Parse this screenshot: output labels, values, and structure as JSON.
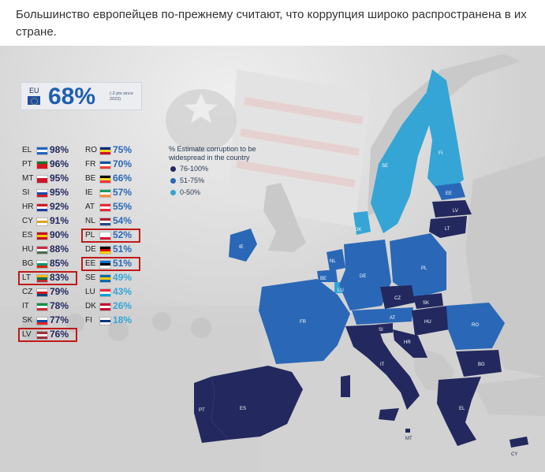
{
  "headline": "Большинство европейцев по-прежнему считают, что коррупция широко распространена в их стране.",
  "eu_summary": {
    "code": "EU",
    "value": "68%",
    "note": "(-2 pts since 2023)"
  },
  "legend": {
    "title": "% Estimate corruption to be widespread in the country",
    "items": [
      {
        "label": "76-100%",
        "color": "#23295e"
      },
      {
        "label": "51-75%",
        "color": "#2a68b7"
      },
      {
        "label": "0-50%",
        "color": "#35a5d6"
      }
    ]
  },
  "colors": {
    "high": "#23295e",
    "medium": "#2a68b7",
    "low": "#35a5d6",
    "non_eu": "#c9c9c9",
    "highlight": "#c01a1a"
  },
  "countries_left": [
    {
      "code": "EL",
      "pct": "98%",
      "flag": [
        "#1c64c4",
        "#ffffff",
        "#1c64c4"
      ],
      "highlight": false
    },
    {
      "code": "PT",
      "pct": "96%",
      "flag": [
        "#0f7a2d",
        "#d8161d",
        "#d8161d"
      ],
      "highlight": false
    },
    {
      "code": "MT",
      "pct": "95%",
      "flag": [
        "#ffffff",
        "#cf142b",
        "#cf142b"
      ],
      "highlight": false
    },
    {
      "code": "SI",
      "pct": "95%",
      "flag": [
        "#ffffff",
        "#1a4bb0",
        "#d8161d"
      ],
      "highlight": false
    },
    {
      "code": "HR",
      "pct": "92%",
      "flag": [
        "#d8161d",
        "#ffffff",
        "#1a3ea0"
      ],
      "highlight": false
    },
    {
      "code": "CY",
      "pct": "91%",
      "flag": [
        "#ffffff",
        "#e3a21a",
        "#ffffff"
      ],
      "highlight": false
    },
    {
      "code": "ES",
      "pct": "90%",
      "flag": [
        "#c60b1e",
        "#ffc400",
        "#c60b1e"
      ],
      "highlight": false
    },
    {
      "code": "HU",
      "pct": "88%",
      "flag": [
        "#cd2a3e",
        "#ffffff",
        "#436f4d"
      ],
      "highlight": false
    },
    {
      "code": "BG",
      "pct": "85%",
      "flag": [
        "#ffffff",
        "#00966e",
        "#d62612"
      ],
      "highlight": false
    },
    {
      "code": "LT",
      "pct": "83%",
      "flag": [
        "#fdb913",
        "#006a44",
        "#c1272d"
      ],
      "highlight": true
    },
    {
      "code": "CZ",
      "pct": "79%",
      "flag": [
        "#ffffff",
        "#d7141a",
        "#11457e"
      ],
      "highlight": false
    },
    {
      "code": "IT",
      "pct": "78%",
      "flag": [
        "#009246",
        "#ffffff",
        "#ce2b37"
      ],
      "highlight": false
    },
    {
      "code": "SK",
      "pct": "77%",
      "flag": [
        "#ffffff",
        "#0b4ea2",
        "#ee1c25"
      ],
      "highlight": false
    },
    {
      "code": "LV",
      "pct": "76%",
      "flag": [
        "#9e3039",
        "#ffffff",
        "#9e3039"
      ],
      "highlight": true
    }
  ],
  "countries_right": [
    {
      "code": "RO",
      "pct": "75%",
      "flag": [
        "#002b7f",
        "#fcd116",
        "#ce1126"
      ],
      "highlight": false
    },
    {
      "code": "FR",
      "pct": "70%",
      "flag": [
        "#0055a4",
        "#ffffff",
        "#ef4135"
      ],
      "highlight": false
    },
    {
      "code": "BE",
      "pct": "66%",
      "flag": [
        "#000000",
        "#fdda24",
        "#ef3340"
      ],
      "highlight": false
    },
    {
      "code": "IE",
      "pct": "57%",
      "flag": [
        "#169b62",
        "#ffffff",
        "#ff883e"
      ],
      "highlight": false
    },
    {
      "code": "AT",
      "pct": "55%",
      "flag": [
        "#ed2939",
        "#ffffff",
        "#ed2939"
      ],
      "highlight": false
    },
    {
      "code": "NL",
      "pct": "54%",
      "flag": [
        "#ae1c28",
        "#ffffff",
        "#21468b"
      ],
      "highlight": false
    },
    {
      "code": "PL",
      "pct": "52%",
      "flag": [
        "#ffffff",
        "#ffffff",
        "#dc143c"
      ],
      "highlight": true
    },
    {
      "code": "DE",
      "pct": "51%",
      "flag": [
        "#000000",
        "#dd0000",
        "#ffce00"
      ],
      "highlight": false
    },
    {
      "code": "EE",
      "pct": "51%",
      "flag": [
        "#0072ce",
        "#000000",
        "#ffffff"
      ],
      "highlight": true
    },
    {
      "code": "SE",
      "pct": "49%",
      "flag": [
        "#006aa7",
        "#fecc00",
        "#006aa7"
      ],
      "highlight": false
    },
    {
      "code": "LU",
      "pct": "43%",
      "flag": [
        "#ed2939",
        "#ffffff",
        "#00a1de"
      ],
      "highlight": false
    },
    {
      "code": "DK",
      "pct": "26%",
      "flag": [
        "#c60c30",
        "#ffffff",
        "#c60c30"
      ],
      "highlight": false
    },
    {
      "code": "FI",
      "pct": "18%",
      "flag": [
        "#ffffff",
        "#003580",
        "#ffffff"
      ],
      "highlight": false
    }
  ],
  "map_labels": {
    "SE": "SE",
    "FI": "FI",
    "EE": "EE",
    "LV": "LV",
    "LT": "LT",
    "IE": "IE",
    "DK": "DK",
    "NL": "NL",
    "BE": "BE",
    "LU": "LU",
    "DE": "DE",
    "PL": "PL",
    "CZ": "CZ",
    "SK": "SK",
    "AT": "AT",
    "SI": "SI",
    "HU": "HU",
    "HR": "HR",
    "RO": "RO",
    "BG": "BG",
    "FR": "FR",
    "IT": "IT",
    "ES": "ES",
    "PT": "PT",
    "EL": "EL",
    "MT": "MT",
    "CY": "CY"
  }
}
